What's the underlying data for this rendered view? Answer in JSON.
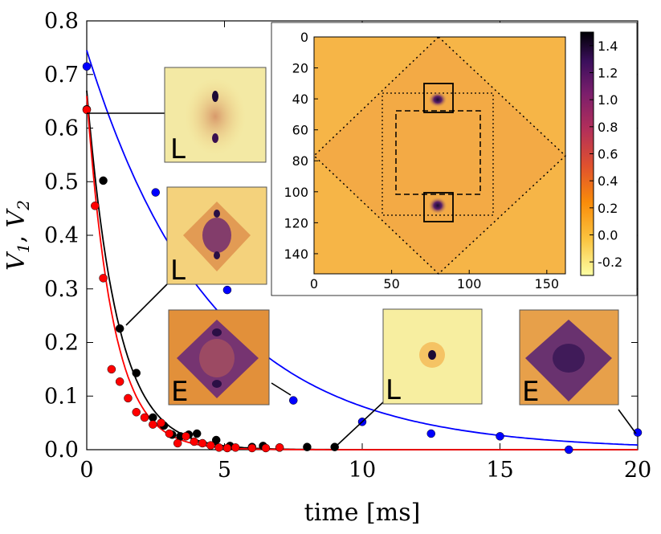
{
  "chart_data": {
    "type": "scatter",
    "xlabel": "time [ms]",
    "ylabel_main": "V",
    "ylabel_sub1": "1",
    "ylabel_sub2": "2",
    "ylabel_sep": ", ",
    "xlim": [
      0,
      20
    ],
    "ylim": [
      0,
      0.8
    ],
    "x_ticks": [
      0,
      5,
      10,
      15,
      20
    ],
    "x_tick_labels": [
      "0",
      "5",
      "10",
      "15",
      "20"
    ],
    "y_ticks": [
      0,
      0.1,
      0.2,
      0.3,
      0.4,
      0.5,
      0.6,
      0.7,
      0.8
    ],
    "y_tick_labels": [
      "0.0",
      "0.1",
      "0.2",
      "0.3",
      "0.4",
      "0.5",
      "0.6",
      "0.7",
      "0.8"
    ],
    "series": [
      {
        "name": "blue",
        "color": "#0000ff",
        "points": [
          [
            0,
            0.715
          ],
          [
            2.5,
            0.48
          ],
          [
            5.1,
            0.298
          ],
          [
            7.5,
            0.092
          ],
          [
            10,
            0.052
          ],
          [
            12.5,
            0.03
          ],
          [
            15,
            0.025
          ],
          [
            17.5,
            0.0
          ],
          [
            20,
            0.032
          ]
        ],
        "fit": {
          "a": 0.745,
          "tau": 4.5
        }
      },
      {
        "name": "black",
        "color": "#000000",
        "points": [
          [
            0,
            0.635
          ],
          [
            0.6,
            0.502
          ],
          [
            1.2,
            0.226
          ],
          [
            1.8,
            0.143
          ],
          [
            2.4,
            0.06
          ],
          [
            2.8,
            0.045
          ],
          [
            3.1,
            0.028
          ],
          [
            3.4,
            0.025
          ],
          [
            3.7,
            0.028
          ],
          [
            4.0,
            0.03
          ],
          [
            4.7,
            0.018
          ],
          [
            5.2,
            0.007
          ],
          [
            6.0,
            0.005
          ],
          [
            6.4,
            0.007
          ],
          [
            7.0,
            0.004
          ],
          [
            8.0,
            0.005
          ],
          [
            9.0,
            0.005
          ]
        ],
        "fit": {
          "a": 0.67,
          "tau": 1.1
        }
      },
      {
        "name": "red",
        "color": "#ff0000",
        "points": [
          [
            0,
            0.634
          ],
          [
            0.3,
            0.455
          ],
          [
            0.6,
            0.32
          ],
          [
            0.9,
            0.15
          ],
          [
            1.2,
            0.127
          ],
          [
            1.5,
            0.096
          ],
          [
            1.8,
            0.07
          ],
          [
            2.1,
            0.06
          ],
          [
            2.4,
            0.047
          ],
          [
            2.7,
            0.05
          ],
          [
            3.0,
            0.03
          ],
          [
            3.3,
            0.012
          ],
          [
            3.6,
            0.025
          ],
          [
            3.9,
            0.015
          ],
          [
            4.2,
            0.012
          ],
          [
            4.5,
            0.008
          ],
          [
            4.8,
            0.004
          ],
          [
            5.1,
            0.003
          ],
          [
            5.4,
            0.004
          ],
          [
            6.0,
            0.003
          ],
          [
            6.5,
            0.003
          ],
          [
            7.0,
            0.004
          ]
        ],
        "fit": {
          "a": 0.66,
          "tau": 0.95
        }
      }
    ]
  },
  "inset": {
    "x_tick_labels": [
      "0",
      "50",
      "100",
      "150"
    ],
    "y_tick_labels": [
      "0",
      "20",
      "40",
      "60",
      "80",
      "100",
      "120",
      "140"
    ],
    "colorbar_labels": [
      "1.4",
      "1.2",
      "1.0",
      "0.8",
      "0.6",
      "0.4",
      "0.2",
      "0.0",
      "-0.2"
    ]
  },
  "thumbnails": [
    {
      "tag": "L"
    },
    {
      "tag": "L"
    },
    {
      "tag": "E"
    },
    {
      "tag": "L"
    },
    {
      "tag": "E"
    }
  ]
}
